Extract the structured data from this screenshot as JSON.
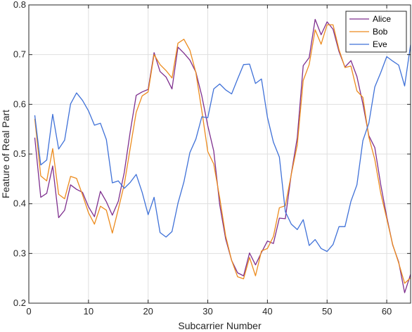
{
  "chart_data": {
    "type": "line",
    "xlabel": "Subcarrier Number",
    "ylabel": "Feature of Real Part",
    "xlim": [
      0,
      64
    ],
    "ylim": [
      0.2,
      0.8
    ],
    "xticks": [
      0,
      10,
      20,
      30,
      40,
      50,
      60
    ],
    "yticks": [
      0.2,
      0.3,
      0.4,
      0.5,
      0.6,
      0.7,
      0.8
    ],
    "xtick_labels": [
      "0",
      "10",
      "20",
      "30",
      "40",
      "50",
      "60"
    ],
    "ytick_labels": [
      "0.2",
      "0.3",
      "0.4",
      "0.5",
      "0.6",
      "0.7",
      "0.8"
    ],
    "grid": true,
    "legend_position": "top-right",
    "x": [
      1,
      2,
      3,
      4,
      5,
      6,
      7,
      8,
      9,
      10,
      11,
      12,
      13,
      14,
      15,
      16,
      17,
      18,
      19,
      20,
      21,
      22,
      23,
      24,
      25,
      26,
      27,
      28,
      29,
      30,
      31,
      32,
      33,
      34,
      35,
      36,
      37,
      38,
      39,
      40,
      41,
      42,
      43,
      44,
      45,
      46,
      47,
      48,
      49,
      50,
      51,
      52,
      53,
      54,
      55,
      56,
      57,
      58,
      59,
      60,
      61,
      62,
      63,
      64
    ],
    "series": [
      {
        "name": "Alice",
        "color": "#7e2f8e",
        "values": [
          0.533,
          0.413,
          0.421,
          0.476,
          0.372,
          0.387,
          0.438,
          0.429,
          0.423,
          0.394,
          0.374,
          0.425,
          0.404,
          0.377,
          0.405,
          0.463,
          0.545,
          0.618,
          0.625,
          0.63,
          0.704,
          0.666,
          0.655,
          0.631,
          0.715,
          0.703,
          0.689,
          0.665,
          0.617,
          0.557,
          0.506,
          0.398,
          0.329,
          0.286,
          0.261,
          0.255,
          0.301,
          0.277,
          0.302,
          0.325,
          0.32,
          0.371,
          0.37,
          0.46,
          0.533,
          0.678,
          0.694,
          0.771,
          0.74,
          0.766,
          0.751,
          0.706,
          0.675,
          0.688,
          0.656,
          0.601,
          0.537,
          0.513,
          0.438,
          0.374,
          0.317,
          0.283,
          0.221,
          0.258
        ]
      },
      {
        "name": "Bob",
        "color": "#ec8b1d",
        "values": [
          0.571,
          0.456,
          0.446,
          0.511,
          0.419,
          0.41,
          0.455,
          0.451,
          0.418,
          0.382,
          0.359,
          0.395,
          0.387,
          0.341,
          0.389,
          0.439,
          0.512,
          0.584,
          0.617,
          0.625,
          0.7,
          0.68,
          0.668,
          0.653,
          0.723,
          0.731,
          0.709,
          0.664,
          0.587,
          0.505,
          0.48,
          0.412,
          0.335,
          0.286,
          0.253,
          0.249,
          0.292,
          0.255,
          0.305,
          0.31,
          0.334,
          0.392,
          0.396,
          0.459,
          0.518,
          0.648,
          0.68,
          0.75,
          0.721,
          0.76,
          0.76,
          0.71,
          0.674,
          0.677,
          0.627,
          0.614,
          0.534,
          0.489,
          0.421,
          0.37,
          0.318,
          0.281,
          0.24,
          0.251
        ]
      },
      {
        "name": "Eve",
        "color": "#3f71d8",
        "values": [
          0.578,
          0.478,
          0.488,
          0.58,
          0.51,
          0.528,
          0.601,
          0.623,
          0.608,
          0.587,
          0.558,
          0.562,
          0.529,
          0.442,
          0.446,
          0.431,
          0.443,
          0.459,
          0.423,
          0.378,
          0.413,
          0.342,
          0.333,
          0.344,
          0.401,
          0.444,
          0.503,
          0.53,
          0.575,
          0.573,
          0.631,
          0.641,
          0.629,
          0.621,
          0.651,
          0.68,
          0.681,
          0.642,
          0.651,
          0.574,
          0.524,
          0.494,
          0.384,
          0.359,
          0.348,
          0.368,
          0.316,
          0.328,
          0.31,
          0.304,
          0.318,
          0.354,
          0.354,
          0.405,
          0.438,
          0.527,
          0.562,
          0.635,
          0.664,
          0.696,
          0.687,
          0.679,
          0.637,
          0.72
        ]
      }
    ]
  }
}
